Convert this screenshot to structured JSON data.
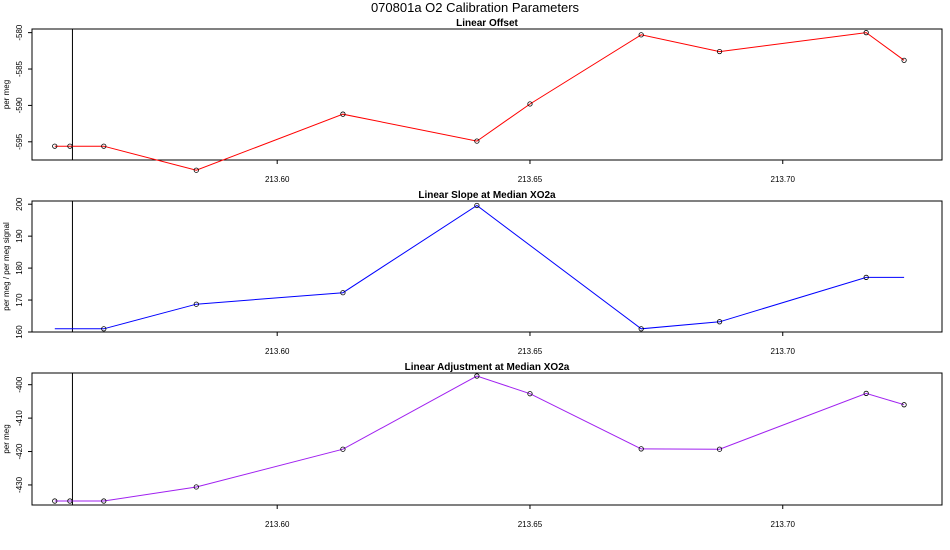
{
  "figure": {
    "title": "070801a   O2 Calibration Parameters"
  },
  "chart_data": [
    {
      "type": "line",
      "title": "Linear Offset",
      "xlabel": "",
      "ylabel": "per meg",
      "xlim": [
        213.5515,
        213.7315
      ],
      "ylim": [
        -597.5,
        -579.5
      ],
      "xticks": [
        213.6,
        213.65,
        213.7
      ],
      "xtick_labels": [
        "213.60",
        "213.65",
        "213.70"
      ],
      "yticks": [
        -595,
        -590,
        -585,
        -580
      ],
      "ytick_labels": [
        "-595",
        "-590",
        "-585",
        "-580"
      ],
      "vline_x": 213.5595,
      "grid": false,
      "series": [
        {
          "color": "#ff0000",
          "x": [
            213.556,
            213.559,
            213.5657,
            213.584,
            213.613,
            213.6395,
            213.65,
            213.672,
            213.6875,
            213.7165,
            213.724
          ],
          "y": [
            -595.6,
            -595.6,
            -595.6,
            -598.9,
            -591.2,
            -594.9,
            -589.8,
            -580.3,
            -582.6,
            -580.0,
            -583.8
          ],
          "markers": [
            true,
            true,
            true,
            true,
            true,
            true,
            true,
            true,
            true,
            true,
            true
          ]
        }
      ]
    },
    {
      "type": "line",
      "title": "Linear Slope at Median XO2a",
      "xlabel": "",
      "ylabel": "per meg / per meg signal",
      "xlim": [
        213.5515,
        213.7315
      ],
      "ylim": [
        160.0,
        201.0
      ],
      "xticks": [
        213.6,
        213.65,
        213.7
      ],
      "xtick_labels": [
        "213.60",
        "213.65",
        "213.70"
      ],
      "yticks": [
        160,
        170,
        180,
        190,
        200
      ],
      "ytick_labels": [
        "160",
        "170",
        "180",
        "190",
        "200"
      ],
      "vline_x": 213.5595,
      "grid": false,
      "series": [
        {
          "color": "#0000ff",
          "x": [
            213.556,
            213.5657,
            213.584,
            213.613,
            213.6395,
            213.672,
            213.6875,
            213.7165,
            213.724
          ],
          "y": [
            161.0,
            161.0,
            168.7,
            172.3,
            199.6,
            161.0,
            163.2,
            177.1,
            177.1
          ],
          "markers": [
            false,
            true,
            true,
            true,
            true,
            true,
            true,
            true,
            false
          ]
        }
      ]
    },
    {
      "type": "line",
      "title": "Linear Adjustment at Median XO2a",
      "xlabel": "",
      "ylabel": "per meg",
      "xlim": [
        213.5515,
        213.7315
      ],
      "ylim": [
        -436.0,
        -396.5
      ],
      "xticks": [
        213.6,
        213.65,
        213.7
      ],
      "xtick_labels": [
        "213.60",
        "213.65",
        "213.70"
      ],
      "yticks": [
        -430,
        -420,
        -410,
        -400
      ],
      "ytick_labels": [
        "-430",
        "-420",
        "-410",
        "-400"
      ],
      "vline_x": 213.5595,
      "grid": false,
      "series": [
        {
          "color": "#a020f0",
          "x": [
            213.556,
            213.559,
            213.5657,
            213.584,
            213.613,
            213.6395,
            213.65,
            213.672,
            213.6875,
            213.7165,
            213.724
          ],
          "y": [
            -434.8,
            -434.8,
            -434.8,
            -430.6,
            -419.3,
            -397.4,
            -402.7,
            -419.2,
            -419.3,
            -402.6,
            -406.0
          ],
          "markers": [
            true,
            true,
            true,
            true,
            true,
            true,
            true,
            true,
            true,
            true,
            true
          ]
        }
      ]
    }
  ]
}
